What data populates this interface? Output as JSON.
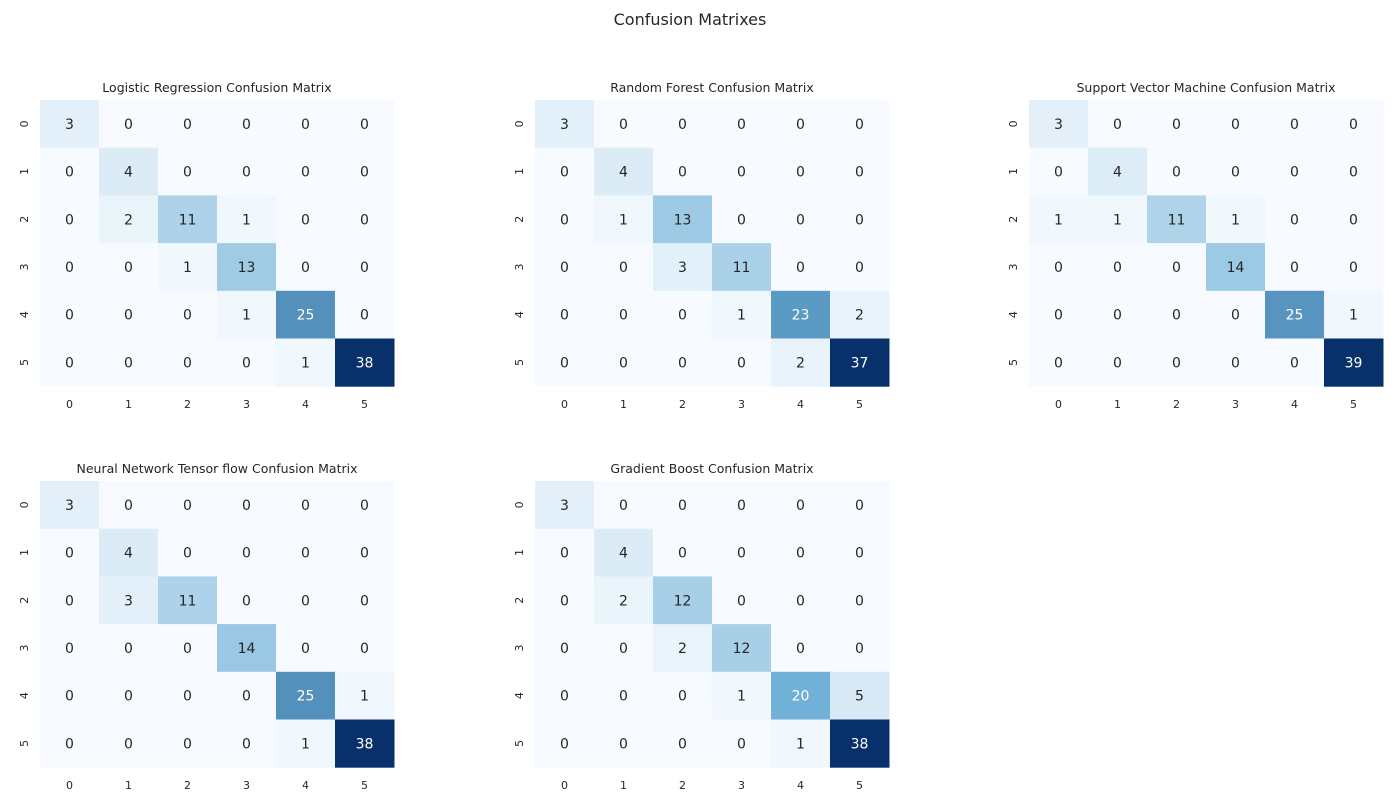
{
  "figure": {
    "title": "Confusion Matrixes"
  },
  "colormap": {
    "low": "#f7fbff",
    "mid": "#6baed6",
    "high": "#08306b"
  },
  "chart_data": [
    {
      "type": "heatmap",
      "title": "Logistic Regression Confusion Matrix",
      "x_ticks": [
        "0",
        "1",
        "2",
        "3",
        "4",
        "5"
      ],
      "y_ticks": [
        "0",
        "1",
        "2",
        "3",
        "4",
        "5"
      ],
      "vmax": 38,
      "matrix": [
        [
          3,
          0,
          0,
          0,
          0,
          0
        ],
        [
          0,
          4,
          0,
          0,
          0,
          0
        ],
        [
          0,
          2,
          11,
          1,
          0,
          0
        ],
        [
          0,
          0,
          1,
          13,
          0,
          0
        ],
        [
          0,
          0,
          0,
          1,
          25,
          0
        ],
        [
          0,
          0,
          0,
          0,
          1,
          38
        ]
      ]
    },
    {
      "type": "heatmap",
      "title": "Random Forest Confusion Matrix",
      "x_ticks": [
        "0",
        "1",
        "2",
        "3",
        "4",
        "5"
      ],
      "y_ticks": [
        "0",
        "1",
        "2",
        "3",
        "4",
        "5"
      ],
      "vmax": 37,
      "matrix": [
        [
          3,
          0,
          0,
          0,
          0,
          0
        ],
        [
          0,
          4,
          0,
          0,
          0,
          0
        ],
        [
          0,
          1,
          13,
          0,
          0,
          0
        ],
        [
          0,
          0,
          3,
          11,
          0,
          0
        ],
        [
          0,
          0,
          0,
          1,
          23,
          2
        ],
        [
          0,
          0,
          0,
          0,
          2,
          37
        ]
      ]
    },
    {
      "type": "heatmap",
      "title": "Support Vector Machine Confusion Matrix",
      "x_ticks": [
        "0",
        "1",
        "2",
        "3",
        "4",
        "5"
      ],
      "y_ticks": [
        "0",
        "1",
        "2",
        "3",
        "4",
        "5"
      ],
      "vmax": 39,
      "matrix": [
        [
          3,
          0,
          0,
          0,
          0,
          0
        ],
        [
          0,
          4,
          0,
          0,
          0,
          0
        ],
        [
          1,
          1,
          11,
          1,
          0,
          0
        ],
        [
          0,
          0,
          0,
          14,
          0,
          0
        ],
        [
          0,
          0,
          0,
          0,
          25,
          1
        ],
        [
          0,
          0,
          0,
          0,
          0,
          39
        ]
      ]
    },
    {
      "type": "heatmap",
      "title": "Neural Network Tensor flow Confusion Matrix",
      "x_ticks": [
        "0",
        "1",
        "2",
        "3",
        "4",
        "5"
      ],
      "y_ticks": [
        "0",
        "1",
        "2",
        "3",
        "4",
        "5"
      ],
      "vmax": 38,
      "matrix": [
        [
          3,
          0,
          0,
          0,
          0,
          0
        ],
        [
          0,
          4,
          0,
          0,
          0,
          0
        ],
        [
          0,
          3,
          11,
          0,
          0,
          0
        ],
        [
          0,
          0,
          0,
          14,
          0,
          0
        ],
        [
          0,
          0,
          0,
          0,
          25,
          1
        ],
        [
          0,
          0,
          0,
          0,
          1,
          38
        ]
      ]
    },
    {
      "type": "heatmap",
      "title": "Gradient Boost Confusion Matrix",
      "x_ticks": [
        "0",
        "1",
        "2",
        "3",
        "4",
        "5"
      ],
      "y_ticks": [
        "0",
        "1",
        "2",
        "3",
        "4",
        "5"
      ],
      "vmax": 38,
      "matrix": [
        [
          3,
          0,
          0,
          0,
          0,
          0
        ],
        [
          0,
          4,
          0,
          0,
          0,
          0
        ],
        [
          0,
          2,
          12,
          0,
          0,
          0
        ],
        [
          0,
          0,
          2,
          12,
          0,
          0
        ],
        [
          0,
          0,
          0,
          1,
          20,
          5
        ],
        [
          0,
          0,
          0,
          0,
          1,
          38
        ]
      ]
    }
  ]
}
